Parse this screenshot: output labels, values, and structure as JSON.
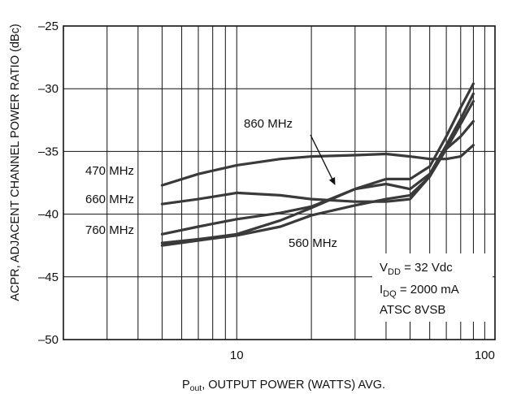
{
  "chart_data": {
    "type": "line",
    "xscale": "log",
    "xlim": [
      2,
      110
    ],
    "ylim": [
      -50,
      -25
    ],
    "xticks": [
      10,
      100
    ],
    "xtick_labels": [
      "10",
      "100"
    ],
    "yticks": [
      -25,
      -30,
      -35,
      -40,
      -45,
      -50
    ],
    "ytick_labels": [
      "–25",
      "–30",
      "–35",
      "–40",
      "–45",
      "–50"
    ],
    "xlabel_main": "P",
    "xlabel_sub": "out",
    "xlabel_rest": ", OUTPUT POWER (WATTS) AVG.",
    "ylabel": "ACPR, ADJACENT CHANNEL POWER RATIO (dBc)",
    "grid": true,
    "series": [
      {
        "name": "470 MHz",
        "x": [
          5,
          7,
          10,
          15,
          20,
          30,
          40,
          50,
          60,
          70,
          80,
          90
        ],
        "y": [
          -37.7,
          -36.8,
          -36.1,
          -35.6,
          -35.4,
          -35.3,
          -35.2,
          -35.4,
          -35.6,
          -35.6,
          -35.4,
          -34.5
        ]
      },
      {
        "name": "660 MHz",
        "x": [
          5,
          7,
          10,
          15,
          20,
          30,
          40,
          50,
          60,
          70,
          80,
          90
        ],
        "y": [
          -39.2,
          -38.8,
          -38.3,
          -38.5,
          -38.8,
          -39.0,
          -39.0,
          -38.8,
          -37.0,
          -34.8,
          -33.8,
          -32.6
        ]
      },
      {
        "name": "760 MHz",
        "x": [
          5,
          7,
          10,
          15,
          20,
          30,
          40,
          50,
          60,
          70,
          80,
          90
        ],
        "y": [
          -41.6,
          -41.0,
          -40.4,
          -39.9,
          -39.4,
          -38.0,
          -37.2,
          -37.2,
          -36.2,
          -33.8,
          -31.5,
          -29.6
        ]
      },
      {
        "name": "860 MHz",
        "x": [
          5,
          7,
          10,
          15,
          20,
          30,
          40,
          50,
          60,
          70,
          80,
          90
        ],
        "y": [
          -42.3,
          -42.0,
          -41.6,
          -40.5,
          -39.5,
          -38.0,
          -37.6,
          -38.0,
          -36.8,
          -34.5,
          -32.4,
          -30.4
        ]
      },
      {
        "name": "560 MHz",
        "x": [
          5,
          7,
          10,
          15,
          20,
          30,
          40,
          50,
          60,
          70,
          80,
          90
        ],
        "y": [
          -42.5,
          -42.1,
          -41.7,
          -41.0,
          -40.1,
          -39.3,
          -38.8,
          -38.5,
          -37.0,
          -34.8,
          -32.8,
          -31.0
        ]
      }
    ],
    "annotations": {
      "label_860": "860 MHz",
      "label_470": "470 MHz",
      "label_660": "660 MHz",
      "label_760": "760 MHz",
      "label_560": "560 MHz",
      "cond1_main": "V",
      "cond1_sub": "DD",
      "cond1_rest": " = 32 Vdc",
      "cond2_main": "I",
      "cond2_sub": "DQ",
      "cond2_rest": " = 2000 mA",
      "cond3": "ATSC 8VSB"
    }
  },
  "colors": {
    "line": "#3a3a3a",
    "grid": "#111111",
    "background": "#ffffff"
  }
}
